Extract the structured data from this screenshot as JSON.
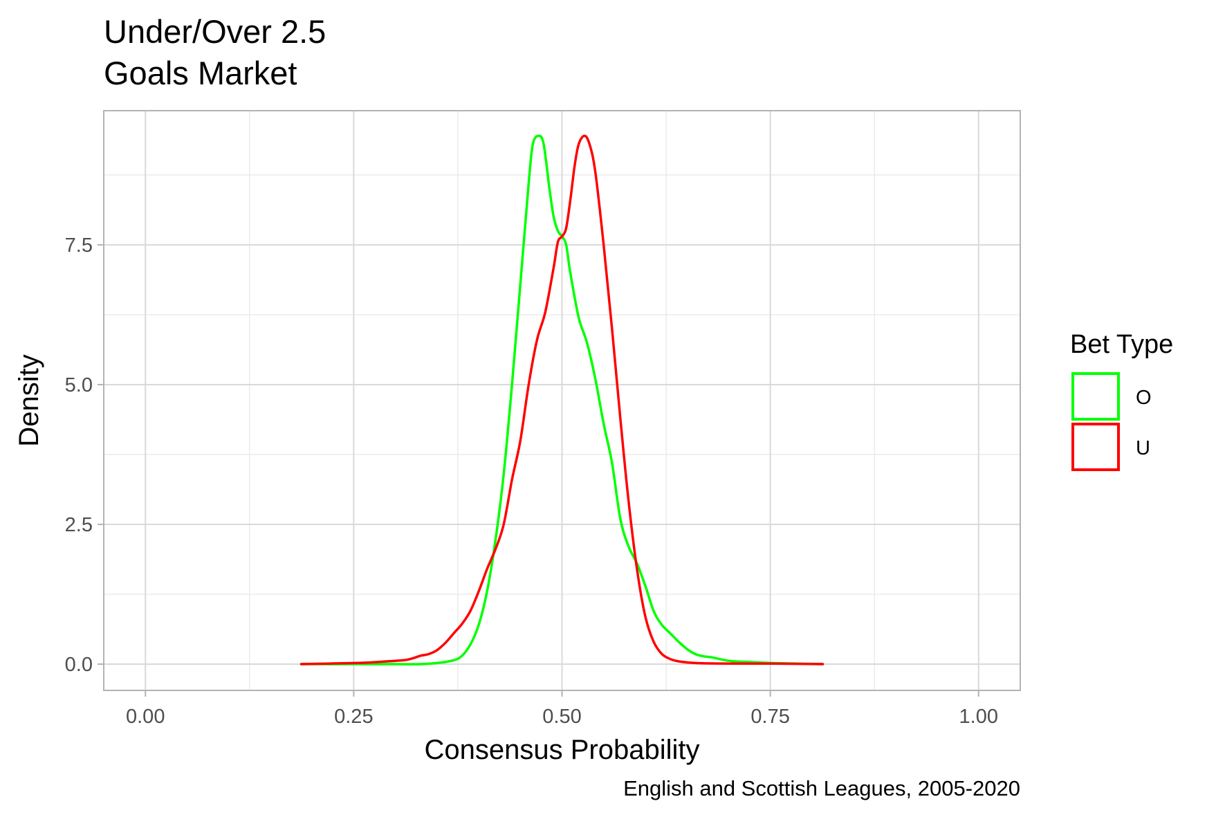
{
  "chart_data": {
    "type": "line",
    "title": [
      "Under/Over 2.5",
      "Goals Market"
    ],
    "xlabel": "Consensus Probability",
    "ylabel": "Density",
    "caption": "English and Scottish Leagues, 2005-2020",
    "xlim": [
      -0.05,
      1.05
    ],
    "ylim": [
      -0.47,
      9.9
    ],
    "x_ticks": [
      0.0,
      0.25,
      0.5,
      0.75,
      1.0
    ],
    "x_tick_labels": [
      "0.00",
      "0.25",
      "0.50",
      "0.75",
      "1.00"
    ],
    "y_ticks": [
      0.0,
      2.5,
      5.0,
      7.5
    ],
    "y_tick_labels": [
      "0.0",
      "2.5",
      "5.0",
      "7.5"
    ],
    "grid": true,
    "legend": {
      "title": "Bet Type",
      "placement": "right"
    },
    "series": [
      {
        "name": "O",
        "color": "#00ff00",
        "points": [
          [
            0.187,
            0.0
          ],
          [
            0.25,
            0.0
          ],
          [
            0.3,
            0.0
          ],
          [
            0.33,
            0.0
          ],
          [
            0.35,
            0.02
          ],
          [
            0.37,
            0.07
          ],
          [
            0.38,
            0.15
          ],
          [
            0.39,
            0.35
          ],
          [
            0.4,
            0.7
          ],
          [
            0.41,
            1.3
          ],
          [
            0.42,
            2.2
          ],
          [
            0.43,
            3.4
          ],
          [
            0.44,
            5.0
          ],
          [
            0.45,
            6.8
          ],
          [
            0.46,
            8.6
          ],
          [
            0.465,
            9.3
          ],
          [
            0.472,
            9.45
          ],
          [
            0.478,
            9.3
          ],
          [
            0.485,
            8.5
          ],
          [
            0.49,
            8.0
          ],
          [
            0.495,
            7.75
          ],
          [
            0.5,
            7.65
          ],
          [
            0.505,
            7.5
          ],
          [
            0.51,
            7.0
          ],
          [
            0.52,
            6.2
          ],
          [
            0.53,
            5.75
          ],
          [
            0.54,
            5.1
          ],
          [
            0.55,
            4.3
          ],
          [
            0.56,
            3.6
          ],
          [
            0.57,
            2.6
          ],
          [
            0.58,
            2.1
          ],
          [
            0.59,
            1.8
          ],
          [
            0.6,
            1.4
          ],
          [
            0.61,
            0.95
          ],
          [
            0.62,
            0.7
          ],
          [
            0.63,
            0.55
          ],
          [
            0.64,
            0.4
          ],
          [
            0.65,
            0.27
          ],
          [
            0.66,
            0.18
          ],
          [
            0.67,
            0.14
          ],
          [
            0.68,
            0.12
          ],
          [
            0.7,
            0.06
          ],
          [
            0.72,
            0.04
          ],
          [
            0.75,
            0.02
          ],
          [
            0.78,
            0.01
          ],
          [
            0.813,
            0.0
          ]
        ]
      },
      {
        "name": "U",
        "color": "#ff0000",
        "points": [
          [
            0.187,
            0.0
          ],
          [
            0.22,
            0.01
          ],
          [
            0.25,
            0.02
          ],
          [
            0.27,
            0.03
          ],
          [
            0.29,
            0.05
          ],
          [
            0.31,
            0.07
          ],
          [
            0.32,
            0.1
          ],
          [
            0.33,
            0.15
          ],
          [
            0.34,
            0.18
          ],
          [
            0.35,
            0.25
          ],
          [
            0.36,
            0.38
          ],
          [
            0.37,
            0.55
          ],
          [
            0.38,
            0.72
          ],
          [
            0.39,
            0.95
          ],
          [
            0.4,
            1.3
          ],
          [
            0.41,
            1.7
          ],
          [
            0.42,
            2.05
          ],
          [
            0.43,
            2.5
          ],
          [
            0.44,
            3.3
          ],
          [
            0.45,
            4.0
          ],
          [
            0.46,
            5.0
          ],
          [
            0.47,
            5.8
          ],
          [
            0.48,
            6.3
          ],
          [
            0.49,
            7.1
          ],
          [
            0.495,
            7.55
          ],
          [
            0.5,
            7.65
          ],
          [
            0.505,
            7.8
          ],
          [
            0.51,
            8.3
          ],
          [
            0.515,
            8.9
          ],
          [
            0.52,
            9.3
          ],
          [
            0.527,
            9.45
          ],
          [
            0.533,
            9.3
          ],
          [
            0.54,
            8.8
          ],
          [
            0.55,
            7.5
          ],
          [
            0.56,
            6.0
          ],
          [
            0.57,
            4.4
          ],
          [
            0.58,
            2.9
          ],
          [
            0.59,
            1.7
          ],
          [
            0.6,
            0.85
          ],
          [
            0.61,
            0.4
          ],
          [
            0.62,
            0.18
          ],
          [
            0.63,
            0.09
          ],
          [
            0.64,
            0.05
          ],
          [
            0.66,
            0.02
          ],
          [
            0.7,
            0.01
          ],
          [
            0.75,
            0.01
          ],
          [
            0.813,
            0.0
          ]
        ]
      }
    ]
  }
}
